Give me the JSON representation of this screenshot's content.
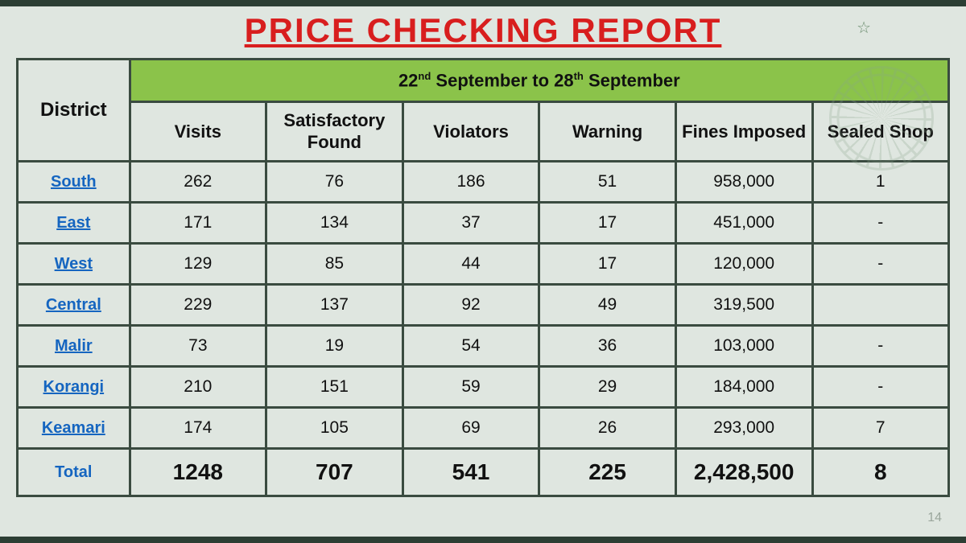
{
  "title": "PRICE CHECKING REPORT",
  "period_prefix": "22",
  "period_sup1": "nd",
  "period_mid": " September to 28",
  "period_sup2": "th",
  "period_suffix": " September",
  "district_header": "District",
  "columns": [
    "Visits",
    "Satisfactory Found",
    "Violators",
    "Warning",
    "Fines Imposed",
    "Sealed Shop"
  ],
  "rows": [
    {
      "name": "South",
      "cells": [
        "262",
        "76",
        "186",
        "51",
        "958,000",
        "1"
      ]
    },
    {
      "name": "East",
      "cells": [
        "171",
        "134",
        "37",
        "17",
        "451,000",
        "-"
      ]
    },
    {
      "name": "West",
      "cells": [
        "129",
        "85",
        "44",
        "17",
        "120,000",
        "-"
      ]
    },
    {
      "name": "Central",
      "cells": [
        "229",
        "137",
        "92",
        "49",
        "319,500",
        ""
      ]
    },
    {
      "name": "Malir",
      "cells": [
        "73",
        "19",
        "54",
        "36",
        "103,000",
        "-"
      ]
    },
    {
      "name": "Korangi",
      "cells": [
        "210",
        "151",
        "59",
        "29",
        "184,000",
        "-"
      ]
    },
    {
      "name": "Keamari",
      "cells": [
        "174",
        "105",
        "69",
        "26",
        "293,000",
        "7"
      ]
    }
  ],
  "total_label": "Total",
  "total_cells": [
    "1248",
    "707",
    "541",
    "225",
    "2,428,500",
    "8"
  ],
  "page_number": "14",
  "colors": {
    "title": "#d81e1e",
    "period_bg": "#8bc34a",
    "border": "#3a4b40",
    "link": "#1565c0",
    "page_bg": "#dfe6e0"
  }
}
